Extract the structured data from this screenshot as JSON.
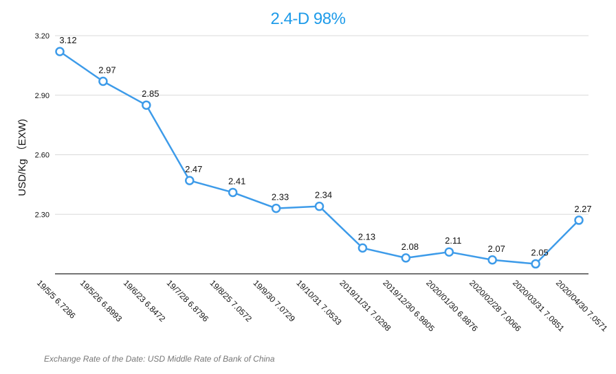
{
  "chart_data": {
    "type": "line",
    "title": "2.4-D 98%",
    "ylabel": "USD/Kg （EXW)",
    "footnote": "Exchange Rate of the Date: USD Middle Rate of Bank of China",
    "ylim": [
      2.0,
      3.2
    ],
    "yticks": [
      2.3,
      2.6,
      2.9,
      3.2
    ],
    "ytick_labels": [
      "2.30",
      "2.60",
      "2.90",
      "3.20"
    ],
    "grid": true,
    "legend": "none",
    "categories": [
      "19/5/5 6.7286",
      "19/5/26 6.8993",
      "19/6/23 6.8472",
      "19/7/28 6.8796",
      "19/8/25 7.0572",
      "19/9/30 7.0729",
      "19/10/31 7.0533",
      "2019/11/31 7.0298",
      "2019/12/30 6.9805",
      "2020/01/30 6.8876",
      "2020/02/28 7.0066",
      "2020/03/31 7.0851",
      "2020/04/30 7.0571"
    ],
    "values": [
      3.12,
      2.97,
      2.85,
      2.47,
      2.41,
      2.33,
      2.34,
      2.13,
      2.08,
      2.11,
      2.07,
      2.05,
      2.27
    ],
    "data_labels": [
      "3.12",
      "2.97",
      "2.85",
      "2.47",
      "2.41",
      "2.33",
      "2.34",
      "2.13",
      "2.08",
      "2.11",
      "2.07",
      "2.05",
      "2.27"
    ],
    "colors": {
      "line": "#3d9be9",
      "title": "#1e9be9",
      "grid": "#d9d9d9",
      "axis": "#222222",
      "text": "#111111"
    }
  }
}
